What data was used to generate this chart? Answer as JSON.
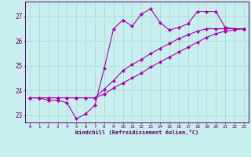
{
  "xlabel": "Windchill (Refroidissement éolien,°C)",
  "bg_color": "#c8eeee",
  "line_color": "#aa00aa",
  "grid_color": "#b0dede",
  "spine_color": "#660066",
  "xlim": [
    -0.5,
    23.5
  ],
  "ylim": [
    22.7,
    27.6
  ],
  "yticks": [
    23,
    24,
    25,
    26,
    27
  ],
  "xticks": [
    0,
    1,
    2,
    3,
    4,
    5,
    6,
    7,
    8,
    9,
    10,
    11,
    12,
    13,
    14,
    15,
    16,
    17,
    18,
    19,
    20,
    21,
    22,
    23
  ],
  "line1_x": [
    0,
    1,
    2,
    3,
    4,
    5,
    6,
    7,
    8,
    9,
    10,
    11,
    12,
    13,
    14,
    15,
    16,
    17,
    18,
    19,
    20,
    21,
    22,
    23
  ],
  "line1_y": [
    23.7,
    23.7,
    23.6,
    23.6,
    23.5,
    22.85,
    23.05,
    23.4,
    24.9,
    26.5,
    26.85,
    26.6,
    27.1,
    27.3,
    26.75,
    26.45,
    26.55,
    26.7,
    27.2,
    27.2,
    27.2,
    26.55,
    26.5,
    26.5
  ],
  "line2_x": [
    0,
    1,
    2,
    3,
    4,
    5,
    6,
    7,
    8,
    9,
    10,
    11,
    12,
    13,
    14,
    15,
    16,
    17,
    18,
    19,
    20,
    21,
    22,
    23
  ],
  "line2_y": [
    23.7,
    23.7,
    23.7,
    23.7,
    23.7,
    23.7,
    23.7,
    23.7,
    23.85,
    24.1,
    24.3,
    24.5,
    24.7,
    24.95,
    25.15,
    25.35,
    25.55,
    25.75,
    25.95,
    26.15,
    26.3,
    26.4,
    26.45,
    26.5
  ],
  "line3_x": [
    0,
    1,
    2,
    3,
    4,
    5,
    6,
    7,
    8,
    9,
    10,
    11,
    12,
    13,
    14,
    15,
    16,
    17,
    18,
    19,
    20,
    21,
    22,
    23
  ],
  "line3_y": [
    23.7,
    23.7,
    23.7,
    23.7,
    23.7,
    23.7,
    23.7,
    23.7,
    24.05,
    24.4,
    24.8,
    25.05,
    25.25,
    25.5,
    25.7,
    25.9,
    26.1,
    26.25,
    26.4,
    26.5,
    26.5,
    26.5,
    26.5,
    26.5
  ]
}
